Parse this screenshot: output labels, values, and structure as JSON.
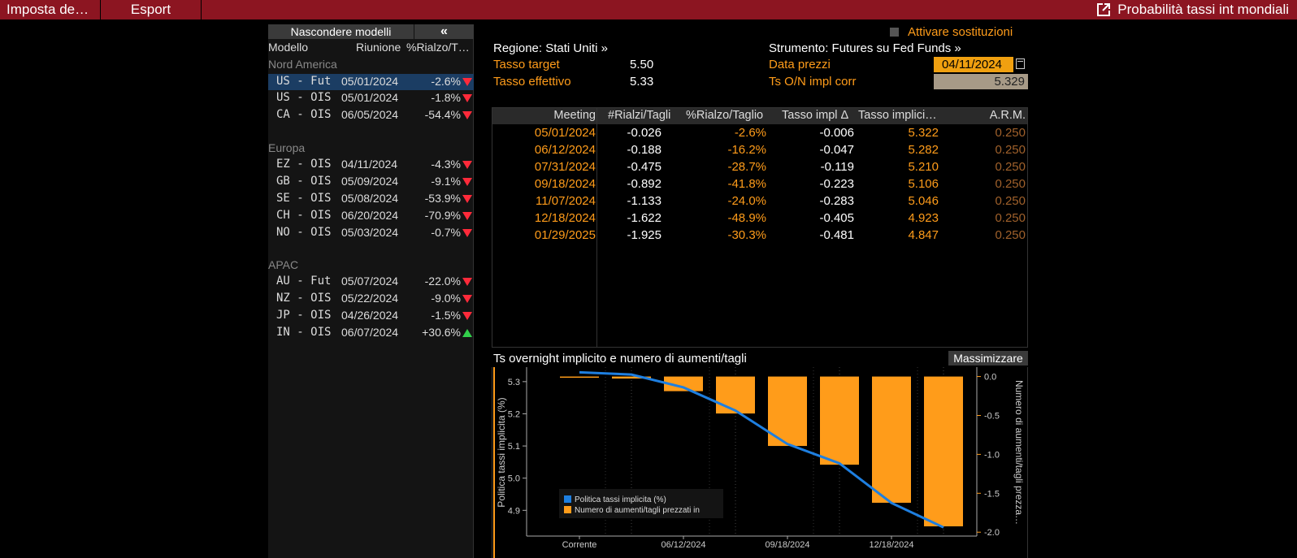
{
  "topbar": {
    "settings_label": "Imposta de…",
    "export_label": "Esport",
    "right_title": "Probabilità tassi int mondiali"
  },
  "left_panel": {
    "hide_models_label": "Nascondere modelli",
    "collapse_label": "«",
    "col_model": "Modello",
    "col_meeting": "Riunione",
    "col_pct": "%Rialzo/T…",
    "groups": [
      {
        "name": "Nord America",
        "rows": [
          {
            "model": "US - Fut",
            "date": "05/01/2024",
            "pct": "-2.6%",
            "dir": "down",
            "selected": true
          },
          {
            "model": "US - OIS",
            "date": "05/01/2024",
            "pct": "-1.8%",
            "dir": "down"
          },
          {
            "model": "CA - OIS",
            "date": "06/05/2024",
            "pct": "-54.4%",
            "dir": "down"
          }
        ]
      },
      {
        "name": "Europa",
        "rows": [
          {
            "model": "EZ - OIS",
            "date": "04/11/2024",
            "pct": "-4.3%",
            "dir": "down"
          },
          {
            "model": "GB - OIS",
            "date": "05/09/2024",
            "pct": "-9.1%",
            "dir": "down"
          },
          {
            "model": "SE - OIS",
            "date": "05/08/2024",
            "pct": "-53.9%",
            "dir": "down"
          },
          {
            "model": "CH - OIS",
            "date": "06/20/2024",
            "pct": "-70.9%",
            "dir": "down"
          },
          {
            "model": "NO - OIS",
            "date": "05/03/2024",
            "pct": "-0.7%",
            "dir": "down"
          }
        ]
      },
      {
        "name": "APAC",
        "rows": [
          {
            "model": "AU - Fut",
            "date": "05/07/2024",
            "pct": "-22.0%",
            "dir": "down"
          },
          {
            "model": "NZ - OIS",
            "date": "05/22/2024",
            "pct": "-9.0%",
            "dir": "down"
          },
          {
            "model": "JP - OIS",
            "date": "04/26/2024",
            "pct": "-1.5%",
            "dir": "down"
          },
          {
            "model": "IN - OIS",
            "date": "06/07/2024",
            "pct": "+30.6%",
            "dir": "up"
          }
        ]
      }
    ]
  },
  "info": {
    "substitutions_label": "Attivare sostituzioni",
    "region": "Regione: Stati Uniti »",
    "instrument": "Strumento: Futures su Fed Funds »",
    "target_rate_label": "Tasso target",
    "target_rate_value": "5.50",
    "effective_rate_label": "Tasso effettivo",
    "effective_rate_value": "5.33",
    "price_date_label": "Data prezzi",
    "price_date_value": "04/11/2024",
    "on_rate_label": "Ts O/N impl corr",
    "on_rate_value": "5.329"
  },
  "table": {
    "headers": [
      "Meeting",
      "#Rialzi/Tagli",
      "%Rialzo/Taglio",
      "Tasso impl Δ",
      "Tasso implici…",
      "A.R.M."
    ],
    "rows": [
      [
        "05/01/2024",
        "-0.026",
        "-2.6%",
        "-0.006",
        "5.322",
        "0.250"
      ],
      [
        "06/12/2024",
        "-0.188",
        "-16.2%",
        "-0.047",
        "5.282",
        "0.250"
      ],
      [
        "07/31/2024",
        "-0.475",
        "-28.7%",
        "-0.119",
        "5.210",
        "0.250"
      ],
      [
        "09/18/2024",
        "-0.892",
        "-41.8%",
        "-0.223",
        "5.106",
        "0.250"
      ],
      [
        "11/07/2024",
        "-1.133",
        "-24.0%",
        "-0.283",
        "5.046",
        "0.250"
      ],
      [
        "12/18/2024",
        "-1.622",
        "-48.9%",
        "-0.405",
        "4.923",
        "0.250"
      ],
      [
        "01/29/2025",
        "-1.925",
        "-30.3%",
        "-0.481",
        "4.847",
        "0.250"
      ]
    ]
  },
  "chart": {
    "title": "Ts overnight implicito e numero di aumenti/tagli",
    "maximize_label": "Massimizzare",
    "left_axis_label": "Politica tassi implicita (%)",
    "right_axis_label": "Numero di aumenti/tagli prezza…",
    "legend_line": "Politica tassi implicita (%)",
    "legend_bar": "Numero di aumenti/tagli prezzati in",
    "line_color": "#1e7fe0",
    "bar_color": "#ff9c1a",
    "left_ticks": [
      "5.3",
      "5.2",
      "5.1",
      "5.0",
      "4.9"
    ],
    "right_ticks": [
      "0.0",
      "-0.5",
      "-1.0",
      "-1.5",
      "-2.0"
    ],
    "x_ticks": [
      "Corrente",
      "06/12/2024",
      "09/18/2024",
      "12/18/2024"
    ]
  },
  "chart_data": {
    "type": "bar",
    "categories": [
      "Corrente",
      "05/01/2024",
      "06/12/2024",
      "07/31/2024",
      "09/18/2024",
      "11/07/2024",
      "12/18/2024",
      "01/29/2025"
    ],
    "series": [
      {
        "name": "Numero di aumenti/tagli prezzati in",
        "type": "bar",
        "axis": "right",
        "values": [
          0.0,
          -0.026,
          -0.188,
          -0.475,
          -0.892,
          -1.133,
          -1.622,
          -1.925
        ]
      },
      {
        "name": "Politica tassi implicita (%)",
        "type": "line",
        "axis": "left",
        "values": [
          5.329,
          5.322,
          5.282,
          5.21,
          5.106,
          5.046,
          4.923,
          4.847
        ]
      }
    ],
    "title": "Ts overnight implicito e numero di aumenti/tagli",
    "ylabel": "Politica tassi implicita (%)",
    "y2label": "Numero di aumenti/tagli prezza…",
    "ylim": [
      4.82,
      5.34
    ],
    "y2lim": [
      -2.05,
      0.1
    ],
    "legend": "bottom-left"
  }
}
